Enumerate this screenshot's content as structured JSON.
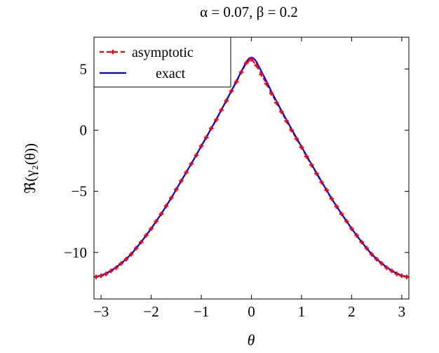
{
  "chart_data": {
    "type": "line",
    "title": "α = 0.07,    β = 0.2",
    "xlabel": "θ",
    "ylabel": "ℜ(γ₂(θ))",
    "xlim": [
      -3.14159,
      3.14159
    ],
    "ylim": [
      -13.8,
      7.6
    ],
    "xticks": [
      -3,
      -2,
      -1,
      0,
      1,
      2,
      3
    ],
    "xtick_labels": [
      "−3",
      "−2",
      "−1",
      "0",
      "1",
      "2",
      "3"
    ],
    "yticks": [
      5,
      0,
      -5,
      -10
    ],
    "ytick_labels": [
      "5",
      "0",
      "−5",
      "−10"
    ],
    "grid": false,
    "legend_position": "top-left",
    "series": [
      {
        "name": "asymptotic",
        "color": "#ff0000",
        "style": "dashed-with-plus-markers",
        "x": [
          -3.1,
          -3.0,
          -2.9,
          -2.8,
          -2.7,
          -2.6,
          -2.5,
          -2.4,
          -2.3,
          -2.2,
          -2.1,
          -2.0,
          -1.9,
          -1.8,
          -1.7,
          -1.6,
          -1.5,
          -1.4,
          -1.3,
          -1.2,
          -1.1,
          -1.0,
          -0.9,
          -0.8,
          -0.7,
          -0.6,
          -0.5,
          -0.4,
          -0.3,
          -0.2,
          -0.1,
          0.0,
          0.1,
          0.2,
          0.3,
          0.4,
          0.5,
          0.6,
          0.7,
          0.8,
          0.9,
          1.0,
          1.1,
          1.2,
          1.3,
          1.4,
          1.5,
          1.6,
          1.7,
          1.8,
          1.9,
          2.0,
          2.1,
          2.2,
          2.3,
          2.4,
          2.5,
          2.6,
          2.7,
          2.8,
          2.9,
          3.0,
          3.1
        ],
        "y": [
          -12.0,
          -11.9,
          -11.75,
          -11.5,
          -11.25,
          -10.9,
          -10.55,
          -10.15,
          -9.65,
          -9.15,
          -8.6,
          -8.05,
          -7.45,
          -6.85,
          -6.2,
          -5.55,
          -4.85,
          -4.15,
          -3.45,
          -2.75,
          -2.05,
          -1.3,
          -0.6,
          0.15,
          0.85,
          1.65,
          2.4,
          3.2,
          3.95,
          4.75,
          5.5,
          5.8,
          5.3,
          4.55,
          3.8,
          3.0,
          2.25,
          1.5,
          0.75,
          0.0,
          -0.7,
          -1.4,
          -2.15,
          -2.85,
          -3.55,
          -4.25,
          -4.9,
          -5.6,
          -6.25,
          -6.85,
          -7.45,
          -8.05,
          -8.6,
          -9.15,
          -9.65,
          -10.15,
          -10.55,
          -10.9,
          -11.25,
          -11.5,
          -11.75,
          -11.9,
          -12.0
        ]
      },
      {
        "name": "exact",
        "color": "#0000ff",
        "style": "solid",
        "x": [
          -3.14,
          -3.0,
          -2.8,
          -2.6,
          -2.4,
          -2.2,
          -2.0,
          -1.8,
          -1.6,
          -1.4,
          -1.2,
          -1.0,
          -0.8,
          -0.6,
          -0.4,
          -0.3,
          -0.2,
          -0.15,
          -0.1,
          -0.05,
          0.0,
          0.05,
          0.1,
          0.15,
          0.2,
          0.3,
          0.4,
          0.6,
          0.8,
          1.0,
          1.2,
          1.4,
          1.6,
          1.8,
          2.0,
          2.2,
          2.4,
          2.6,
          2.8,
          3.0,
          3.14
        ],
        "y": [
          -12.0,
          -11.9,
          -11.5,
          -10.9,
          -10.15,
          -9.15,
          -8.05,
          -6.85,
          -5.55,
          -4.15,
          -2.75,
          -1.3,
          0.15,
          1.65,
          3.2,
          4.0,
          4.8,
          5.2,
          5.6,
          5.85,
          5.95,
          5.85,
          5.6,
          5.2,
          4.8,
          4.0,
          3.15,
          1.6,
          0.1,
          -1.35,
          -2.8,
          -4.2,
          -5.6,
          -6.85,
          -8.05,
          -9.15,
          -10.15,
          -10.9,
          -11.5,
          -11.9,
          -12.0
        ]
      }
    ]
  }
}
